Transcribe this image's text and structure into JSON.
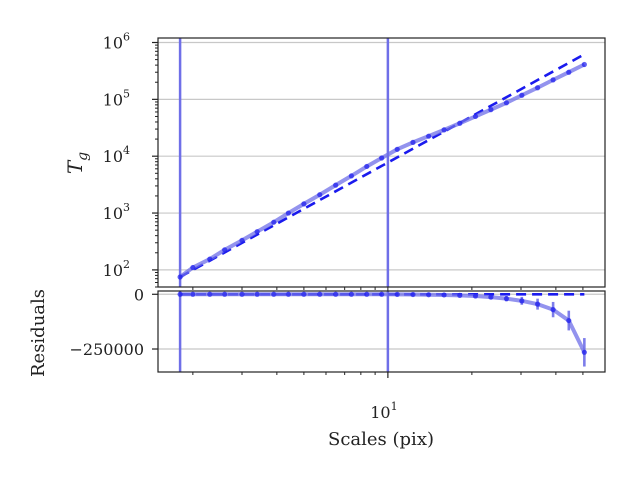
{
  "chart_data": [
    {
      "type": "scatter",
      "panel": "main",
      "ylabel": "T_g",
      "yscale": "log",
      "xscale": "log",
      "xlim": [
        1.5,
        60
      ],
      "ylim": [
        50,
        1200000
      ],
      "yticks": [
        {
          "value": 100,
          "base": "10",
          "exp": "2"
        },
        {
          "value": 1000,
          "base": "10",
          "exp": "3"
        },
        {
          "value": 10000,
          "base": "10",
          "exp": "4"
        },
        {
          "value": 100000,
          "base": "10",
          "exp": "5"
        },
        {
          "value": 1000000,
          "base": "10",
          "exp": "6"
        }
      ],
      "grid": "horizontal",
      "vlines": [
        1.8,
        10
      ],
      "series": [
        {
          "kind": "points-with-line",
          "x": [
            1.8,
            2.0,
            2.3,
            2.6,
            3.0,
            3.4,
            3.9,
            4.4,
            5.0,
            5.7,
            6.5,
            7.4,
            8.4,
            9.5,
            10.8,
            12.3,
            14.0,
            15.9,
            18.1,
            20.6,
            23.4,
            26.6,
            30.2,
            34.4,
            39.1,
            44.5,
            50.6
          ],
          "y": [
            75,
            110,
            155,
            225,
            330,
            470,
            690,
            1000,
            1450,
            2100,
            3100,
            4500,
            6600,
            9300,
            13200,
            17500,
            22500,
            29000,
            38000,
            50000,
            66000,
            87000,
            118000,
            160000,
            220000,
            300000,
            410000
          ]
        },
        {
          "kind": "dashed-fit",
          "x": [
            1.8,
            50.6
          ],
          "y": [
            75,
            620000
          ]
        }
      ]
    },
    {
      "type": "scatter",
      "panel": "residuals",
      "ylabel": "Residuals",
      "xlabel": "Scales (pix)",
      "xscale": "log",
      "xlim": [
        1.5,
        60
      ],
      "ylim": [
        -355000,
        15000
      ],
      "yticks": [
        {
          "value": 0,
          "label": "0"
        },
        {
          "value": -250000,
          "label": "−250000"
        }
      ],
      "xticks": [
        {
          "value": 10,
          "base": "10",
          "exp": "1"
        }
      ],
      "grid": "horizontal",
      "vlines": [
        1.8,
        10
      ],
      "series": [
        {
          "kind": "points-with-errorbars",
          "x": [
            1.8,
            2.0,
            2.3,
            2.6,
            3.0,
            3.4,
            3.9,
            4.4,
            5.0,
            5.7,
            6.5,
            7.4,
            8.4,
            9.5,
            10.8,
            12.3,
            14.0,
            15.9,
            18.1,
            20.6,
            23.4,
            26.6,
            30.2,
            34.4,
            39.1,
            44.5,
            50.6
          ],
          "y": [
            0,
            0,
            0,
            0,
            0,
            0,
            0,
            0,
            0,
            0,
            0,
            0,
            0,
            0,
            -500,
            -1000,
            -2000,
            -3000,
            -5000,
            -8000,
            -13000,
            -20000,
            -30000,
            -45000,
            -70000,
            -120000,
            -265000
          ],
          "err": [
            0,
            0,
            0,
            0,
            0,
            0,
            0,
            0,
            0,
            0,
            0,
            0,
            0,
            0,
            500,
            800,
            1200,
            2000,
            3000,
            5000,
            8000,
            12000,
            18000,
            25000,
            35000,
            45000,
            65000
          ]
        },
        {
          "kind": "dashed-zero",
          "x": [
            1.8,
            50.6
          ],
          "y": [
            0,
            0
          ]
        }
      ]
    }
  ]
}
